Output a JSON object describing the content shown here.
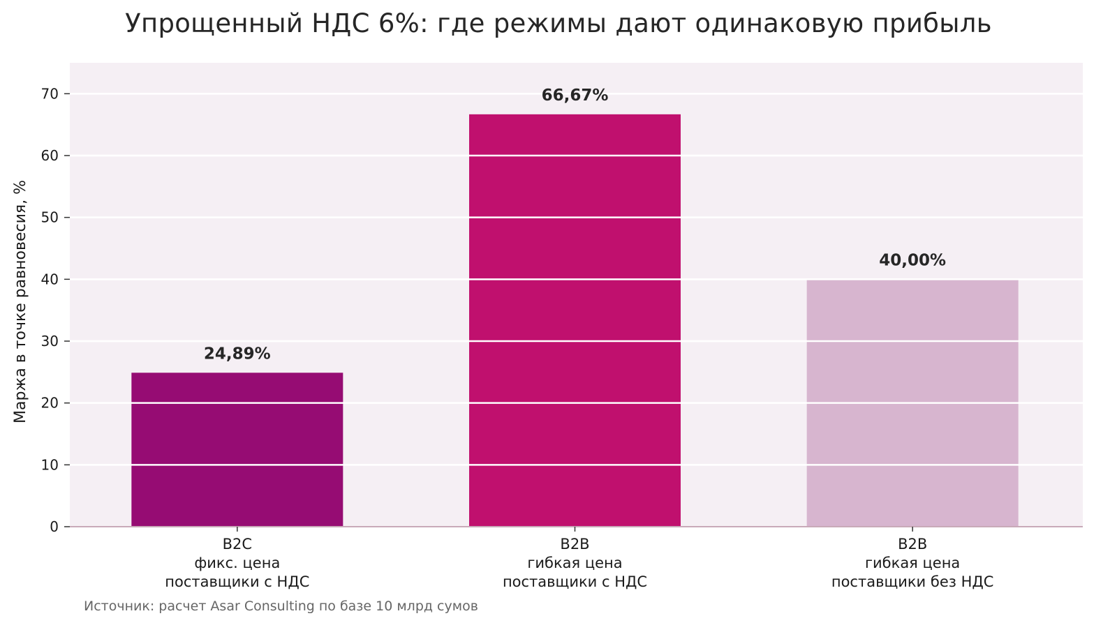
{
  "chart_data": {
    "type": "bar",
    "title": "Упрощенный НДС 6%: где режимы дают одинаковую прибыль",
    "ylabel": "Маржа в точке равновесия, %",
    "ylim": [
      0,
      75
    ],
    "yticks": [
      0,
      10,
      20,
      30,
      40,
      50,
      60,
      70
    ],
    "grid": true,
    "categories": [
      [
        "B2C",
        "фикс. цена",
        "поставщики с НДС"
      ],
      [
        "B2B",
        "гибкая цена",
        "поставщики с НДС"
      ],
      [
        "B2B",
        "гибкая цена",
        "поставщики без НДС"
      ]
    ],
    "values": [
      24.89,
      66.67,
      40.0
    ],
    "data_labels": [
      "24,89%",
      "66,67%",
      "40,00%"
    ],
    "colors": [
      "#960c73",
      "#c0106e",
      "#d7b5cf"
    ],
    "plot_background": "#f5eff4",
    "grid_color": "#ffffff",
    "axis_color": "#c8aab8"
  },
  "source_note": "Источник: расчет Asar Consulting по базе 10 млрд сумов"
}
